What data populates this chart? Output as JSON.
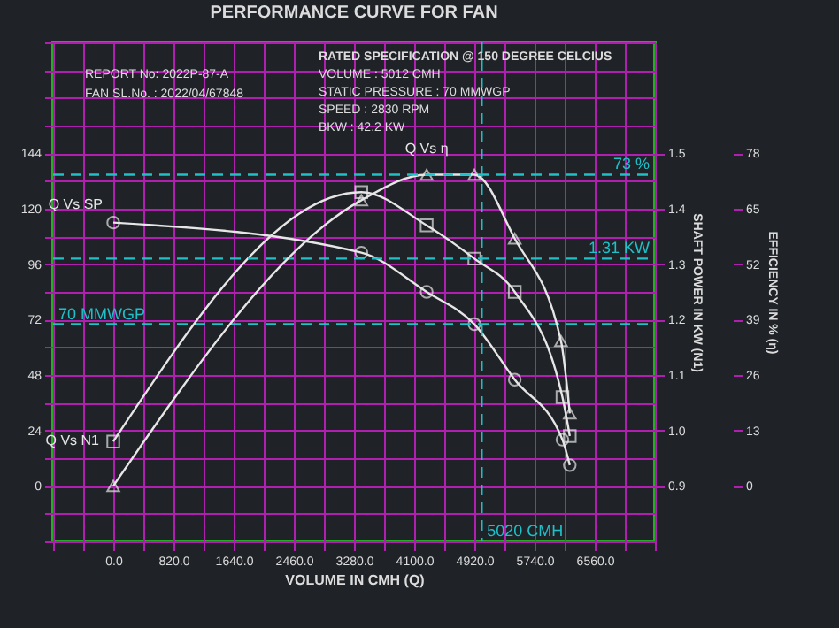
{
  "chart_data": {
    "type": "line",
    "title": "PERFORMANCE CURVE FOR FAN",
    "xlabel": "VOLUME IN CMH (Q)",
    "y2label": "SHAFT POWER IN KW (N1)",
    "y3label": "EFFICIENCY IN % (η)",
    "xlim": [
      -820,
      7380
    ],
    "ylim": [
      -24,
      192
    ],
    "y2lim": [
      0.8,
      1.7
    ],
    "y3lim": [
      -13,
      104
    ],
    "xticks": [
      {
        "value": -820,
        "label": null
      },
      {
        "value": -410,
        "label": null
      },
      {
        "value": 0,
        "label": "0.0"
      },
      {
        "value": 410,
        "label": null
      },
      {
        "value": 820,
        "label": "820.0"
      },
      {
        "value": 1230,
        "label": null
      },
      {
        "value": 1640,
        "label": "1640.0"
      },
      {
        "value": 2050,
        "label": null
      },
      {
        "value": 2460,
        "label": "2460.0"
      },
      {
        "value": 2870,
        "label": null
      },
      {
        "value": 3280,
        "label": "3280.0"
      },
      {
        "value": 3690,
        "label": null
      },
      {
        "value": 4100,
        "label": "4100.0"
      },
      {
        "value": 4510,
        "label": null
      },
      {
        "value": 4920,
        "label": "4920.0"
      },
      {
        "value": 5330,
        "label": null
      },
      {
        "value": 5740,
        "label": "5740.0"
      },
      {
        "value": 6150,
        "label": null
      },
      {
        "value": 6560,
        "label": "6560.0"
      },
      {
        "value": 6970,
        "label": null
      },
      {
        "value": 7380,
        "label": null
      }
    ],
    "yticks": [
      {
        "value": -24,
        "label": null
      },
      {
        "value": -12,
        "label": null
      },
      0,
      {
        "value": 12,
        "label": null
      },
      24,
      {
        "value": 36,
        "label": null
      },
      48,
      {
        "value": 60,
        "label": null
      },
      72,
      {
        "value": 84,
        "label": null
      },
      96,
      {
        "value": 108,
        "label": null
      },
      120,
      {
        "value": 132,
        "label": null
      },
      144,
      {
        "value": 156,
        "label": null
      },
      {
        "value": 168,
        "label": null
      },
      {
        "value": 180,
        "label": null
      },
      {
        "value": 192,
        "label": null
      }
    ],
    "y2ticks": [
      0.9,
      {
        "value": 1,
        "label": "1.0"
      },
      1.1,
      1.2,
      1.3,
      1.4,
      1.5
    ],
    "y3ticks": [
      0,
      13,
      26,
      39,
      52,
      65,
      78
    ],
    "grid": true,
    "series": [
      {
        "name": "Q Vs SP",
        "color": "#e6e6e6",
        "marker": "circle",
        "x": [
          0,
          3380,
          4270,
          4920,
          5470,
          6120,
          6220
        ],
        "values": [
          114,
          101,
          84,
          70,
          46,
          20,
          9
        ]
      },
      {
        "name": "Q Vs N1",
        "color": "#e6e6e6",
        "marker": "square",
        "axis": "y2",
        "x": [
          0,
          3380,
          4270,
          4920,
          5470,
          6120,
          6220
        ],
        "values": [
          0.98,
          1.43,
          1.37,
          1.31,
          1.25,
          1.06,
          0.99
        ]
      },
      {
        "name": "Q Vs η",
        "color": "#e6e6e6",
        "marker": "triangle",
        "axis": "y3",
        "x": [
          0,
          3380,
          4270,
          4920,
          5470,
          6100,
          6220
        ],
        "values": [
          0,
          67,
          73,
          73,
          58,
          34,
          17
        ]
      }
    ],
    "ref_lines": [
      {
        "axis": "y",
        "value": 70,
        "label": "70 MMWGP",
        "color": "#1fc0c8",
        "line_style": "dashed"
      },
      {
        "axis": "y2",
        "value": 1.31,
        "label": "1.31 KW",
        "color": "#1fc0c8",
        "line_style": "dashed"
      },
      {
        "axis": "y3",
        "value": 73,
        "label": "73 %",
        "color": "#1fc0c8",
        "line_style": "dashed"
      },
      {
        "axis": "x",
        "value": 5020,
        "label": "5020 CMH",
        "color": "#1fc0c8",
        "line_style": "dashed"
      }
    ],
    "annotations": [
      "REPORT No: 2022P-87-A",
      "FAN SL.No. : 2022/04/67848",
      "RATED SPECIFICATION @ 150 DEGREE CELCIUS",
      "VOLUME : 5012 CMH",
      "STATIC PRESSURE : 70 MMWGP",
      "SPEED : 2830 RPM",
      "BKW : 42.2 KW"
    ]
  }
}
